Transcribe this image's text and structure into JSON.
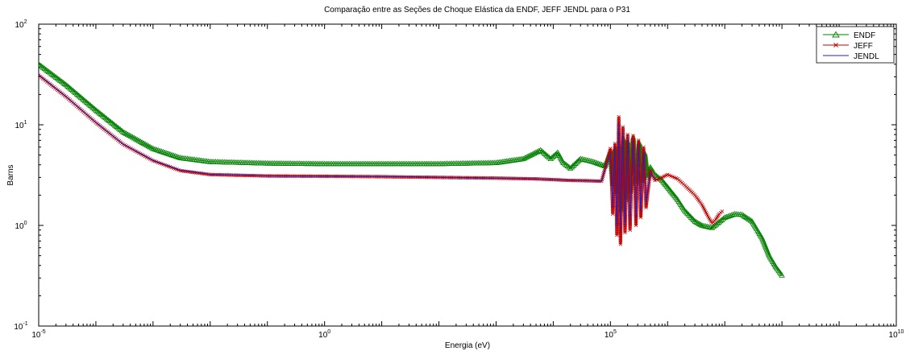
{
  "chart_data": {
    "type": "line",
    "title": "Comparação entre as Seções de Choque Elástica da ENDF, JEFF JENDL para o P31",
    "xlabel": "Energia (eV)",
    "ylabel": "Barns",
    "x_scale": "log",
    "y_scale": "log",
    "xlim": [
      1e-05,
      10000000000.0
    ],
    "ylim": [
      0.1,
      100
    ],
    "x_ticks": [
      {
        "value": 1e-05,
        "base": "10",
        "exp": "-5"
      },
      {
        "value": 1,
        "base": "10",
        "exp": "0"
      },
      {
        "value": 100000.0,
        "base": "10",
        "exp": "5"
      },
      {
        "value": 10000000000.0,
        "base": "10",
        "exp": "10"
      }
    ],
    "y_ticks": [
      {
        "value": 0.1,
        "base": "10",
        "exp": "-1"
      },
      {
        "value": 1,
        "base": "10",
        "exp": "0"
      },
      {
        "value": 10,
        "base": "10",
        "exp": "1"
      },
      {
        "value": 100,
        "base": "10",
        "exp": "2"
      }
    ],
    "grid": false,
    "legend_position": "top-right",
    "series": [
      {
        "name": "ENDF",
        "color": "#008000",
        "marker": "triangle",
        "points": [
          [
            1e-05,
            40
          ],
          [
            3e-05,
            25
          ],
          [
            0.0001,
            14
          ],
          [
            0.0003,
            8.5
          ],
          [
            0.001,
            5.8
          ],
          [
            0.003,
            4.7
          ],
          [
            0.01,
            4.3
          ],
          [
            0.1,
            4.15
          ],
          [
            1,
            4.1
          ],
          [
            10,
            4.1
          ],
          [
            100,
            4.1
          ],
          [
            1000,
            4.2
          ],
          [
            3000,
            4.6
          ],
          [
            6000,
            5.6
          ],
          [
            9000,
            4.6
          ],
          [
            12000,
            5.3
          ],
          [
            15000,
            4.2
          ],
          [
            20000,
            3.7
          ],
          [
            30000,
            4.6
          ],
          [
            50000,
            4.3
          ],
          [
            80000,
            3.9
          ],
          [
            100000,
            5.5
          ],
          [
            110000,
            2.6
          ],
          [
            120000,
            5.8
          ],
          [
            130000,
            2.1
          ],
          [
            140000,
            6.2
          ],
          [
            155000,
            1.4
          ],
          [
            170000,
            7.2
          ],
          [
            185000,
            1.8
          ],
          [
            200000,
            6.8
          ],
          [
            220000,
            2.2
          ],
          [
            250000,
            7.5
          ],
          [
            280000,
            2.6
          ],
          [
            320000,
            6.6
          ],
          [
            360000,
            2.8
          ],
          [
            400000,
            5.2
          ],
          [
            450000,
            3.0
          ],
          [
            500000,
            3.8
          ],
          [
            600000,
            3.2
          ],
          [
            800000,
            2.8
          ],
          [
            1000000.0,
            2.4
          ],
          [
            1500000.0,
            1.8
          ],
          [
            2000000.0,
            1.4
          ],
          [
            3000000.0,
            1.1
          ],
          [
            4000000.0,
            1.0
          ],
          [
            6000000.0,
            0.95
          ],
          [
            10000000.0,
            1.2
          ],
          [
            15000000.0,
            1.3
          ],
          [
            20000000.0,
            1.28
          ],
          [
            30000000.0,
            1.1
          ],
          [
            45000000.0,
            0.75
          ],
          [
            60000000.0,
            0.5
          ],
          [
            80000000.0,
            0.38
          ],
          [
            100000000.0,
            0.32
          ]
        ]
      },
      {
        "name": "JEFF",
        "color": "#c00000",
        "marker": "x",
        "points": [
          [
            1e-05,
            31
          ],
          [
            3e-05,
            19
          ],
          [
            0.0001,
            10.5
          ],
          [
            0.0003,
            6.4
          ],
          [
            0.001,
            4.4
          ],
          [
            0.003,
            3.5
          ],
          [
            0.01,
            3.2
          ],
          [
            0.1,
            3.1
          ],
          [
            1,
            3.08
          ],
          [
            10,
            3.05
          ],
          [
            100,
            3.0
          ],
          [
            1000,
            2.95
          ],
          [
            5000,
            2.9
          ],
          [
            10000,
            2.85
          ],
          [
            20000,
            2.8
          ],
          [
            40000,
            2.78
          ],
          [
            70000,
            2.75
          ],
          [
            100000,
            5.8
          ],
          [
            110000,
            1.3
          ],
          [
            120000,
            6.5
          ],
          [
            130000,
            0.8
          ],
          [
            140000,
            12.0
          ],
          [
            150000,
            0.65
          ],
          [
            165000,
            9.5
          ],
          [
            180000,
            0.85
          ],
          [
            200000,
            8.0
          ],
          [
            220000,
            0.9
          ],
          [
            250000,
            7.8
          ],
          [
            280000,
            1.0
          ],
          [
            310000,
            7.0
          ],
          [
            340000,
            1.2
          ],
          [
            380000,
            6.0
          ],
          [
            420000,
            1.5
          ],
          [
            500000,
            3.5
          ],
          [
            600000,
            2.8
          ],
          [
            800000,
            3.0
          ],
          [
            1000000.0,
            3.2
          ],
          [
            1500000.0,
            2.9
          ],
          [
            2000000.0,
            2.5
          ],
          [
            3000000.0,
            2.0
          ],
          [
            4000000.0,
            1.6
          ],
          [
            5000000.0,
            1.25
          ],
          [
            6000000.0,
            1.05
          ],
          [
            7000000.0,
            1.15
          ],
          [
            8000000.0,
            1.3
          ],
          [
            9000000.0,
            1.38
          ]
        ]
      },
      {
        "name": "JENDL",
        "color": "#2020c0",
        "marker": "none",
        "points": [
          [
            1e-05,
            31.5
          ],
          [
            3e-05,
            19.2
          ],
          [
            0.0001,
            10.6
          ],
          [
            0.0003,
            6.45
          ],
          [
            0.001,
            4.45
          ],
          [
            0.003,
            3.55
          ],
          [
            0.01,
            3.22
          ],
          [
            0.1,
            3.12
          ],
          [
            1,
            3.09
          ],
          [
            10,
            3.06
          ],
          [
            100,
            3.02
          ],
          [
            1000,
            2.96
          ],
          [
            5000,
            2.9
          ],
          [
            10000,
            2.86
          ],
          [
            20000,
            2.82
          ],
          [
            40000,
            2.78
          ],
          [
            70000,
            2.76
          ],
          [
            100000,
            5.2
          ],
          [
            110000,
            1.5
          ],
          [
            120000,
            6.0
          ],
          [
            130000,
            1.0
          ],
          [
            140000,
            10.5
          ],
          [
            150000,
            0.9
          ],
          [
            165000,
            8.5
          ],
          [
            180000,
            1.0
          ],
          [
            200000,
            7.5
          ],
          [
            220000,
            1.1
          ],
          [
            250000,
            7.0
          ],
          [
            280000,
            1.2
          ],
          [
            310000,
            6.5
          ],
          [
            340000,
            1.4
          ],
          [
            380000,
            5.5
          ],
          [
            420000,
            1.7
          ],
          [
            500000,
            3.3
          ],
          [
            600000,
            2.9
          ]
        ]
      }
    ]
  }
}
